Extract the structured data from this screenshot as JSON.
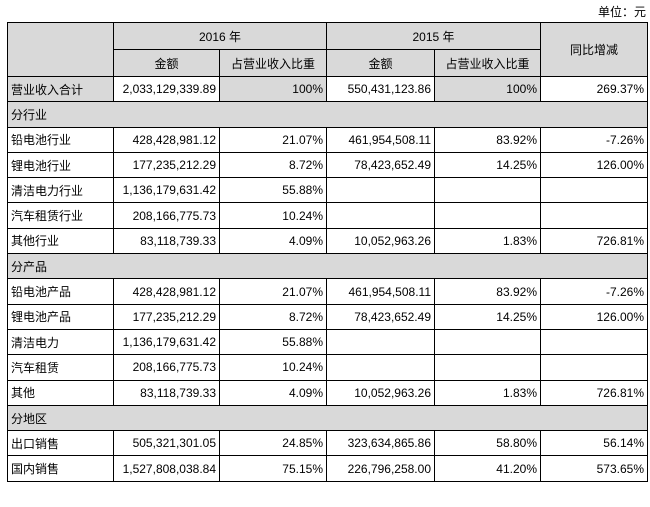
{
  "unit_label": "单位：元",
  "header": {
    "year_2016": "2016 年",
    "year_2015": "2015 年",
    "yoy": "同比增减",
    "amount": "金额",
    "ratio": "占营业收入比重"
  },
  "total": {
    "label": "营业收入合计",
    "amt2016": "2,033,129,339.89",
    "pct2016": "100%",
    "amt2015": "550,431,123.86",
    "pct2015": "100%",
    "yoy": "269.37%"
  },
  "sections": [
    {
      "title": "分行业",
      "rows": [
        {
          "label": "铅电池行业",
          "amt2016": "428,428,981.12",
          "pct2016": "21.07%",
          "amt2015": "461,954,508.11",
          "pct2015": "83.92%",
          "yoy": "-7.26%"
        },
        {
          "label": "锂电池行业",
          "amt2016": "177,235,212.29",
          "pct2016": "8.72%",
          "amt2015": "78,423,652.49",
          "pct2015": "14.25%",
          "yoy": "126.00%"
        },
        {
          "label": "清洁电力行业",
          "amt2016": "1,136,179,631.42",
          "pct2016": "55.88%",
          "amt2015": "",
          "pct2015": "",
          "yoy": ""
        },
        {
          "label": "汽车租赁行业",
          "amt2016": "208,166,775.73",
          "pct2016": "10.24%",
          "amt2015": "",
          "pct2015": "",
          "yoy": ""
        },
        {
          "label": "其他行业",
          "amt2016": "83,118,739.33",
          "pct2016": "4.09%",
          "amt2015": "10,052,963.26",
          "pct2015": "1.83%",
          "yoy": "726.81%"
        }
      ]
    },
    {
      "title": "分产品",
      "rows": [
        {
          "label": "铅电池产品",
          "amt2016": "428,428,981.12",
          "pct2016": "21.07%",
          "amt2015": "461,954,508.11",
          "pct2015": "83.92%",
          "yoy": "-7.26%"
        },
        {
          "label": "锂电池产品",
          "amt2016": "177,235,212.29",
          "pct2016": "8.72%",
          "amt2015": "78,423,652.49",
          "pct2015": "14.25%",
          "yoy": "126.00%"
        },
        {
          "label": "清洁电力",
          "amt2016": "1,136,179,631.42",
          "pct2016": "55.88%",
          "amt2015": "",
          "pct2015": "",
          "yoy": ""
        },
        {
          "label": "汽车租赁",
          "amt2016": "208,166,775.73",
          "pct2016": "10.24%",
          "amt2015": "",
          "pct2015": "",
          "yoy": ""
        },
        {
          "label": "其他",
          "amt2016": "83,118,739.33",
          "pct2016": "4.09%",
          "amt2015": "10,052,963.26",
          "pct2015": "1.83%",
          "yoy": "726.81%"
        }
      ]
    },
    {
      "title": "分地区",
      "rows": [
        {
          "label": "出口销售",
          "amt2016": "505,321,301.05",
          "pct2016": "24.85%",
          "amt2015": "323,634,865.86",
          "pct2015": "58.80%",
          "yoy": "56.14%"
        },
        {
          "label": "国内销售",
          "amt2016": "1,527,808,038.84",
          "pct2016": "75.15%",
          "amt2015": "226,796,258.00",
          "pct2015": "41.20%",
          "yoy": "573.65%"
        }
      ]
    }
  ]
}
